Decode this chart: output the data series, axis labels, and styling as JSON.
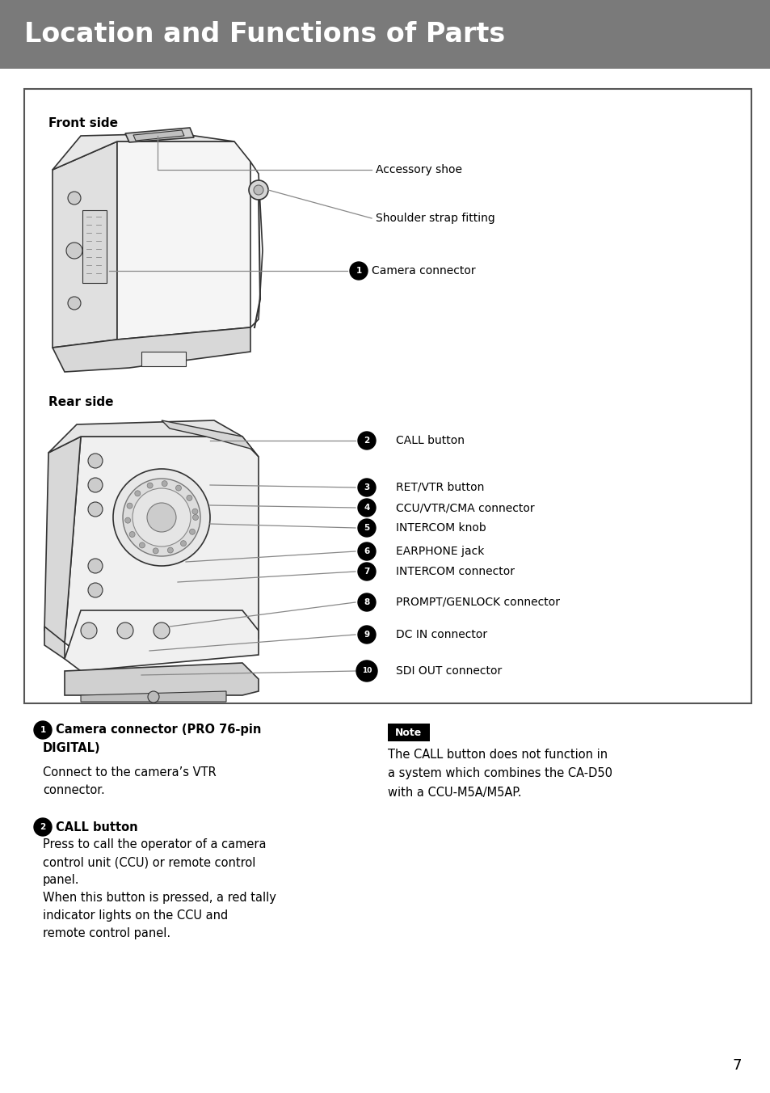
{
  "page_bg": "#ffffff",
  "header_bg": "#808080",
  "header_text": "Location and Functions of Parts",
  "header_text_color": "#ffffff",
  "header_fontsize": 24,
  "box_border": "#333333",
  "front_side_label": "Front side",
  "rear_side_label": "Rear side",
  "page_number": "7",
  "body_fontsize": 10.5,
  "label_fontsize": 10.0,
  "note_fontsize": 10.5
}
